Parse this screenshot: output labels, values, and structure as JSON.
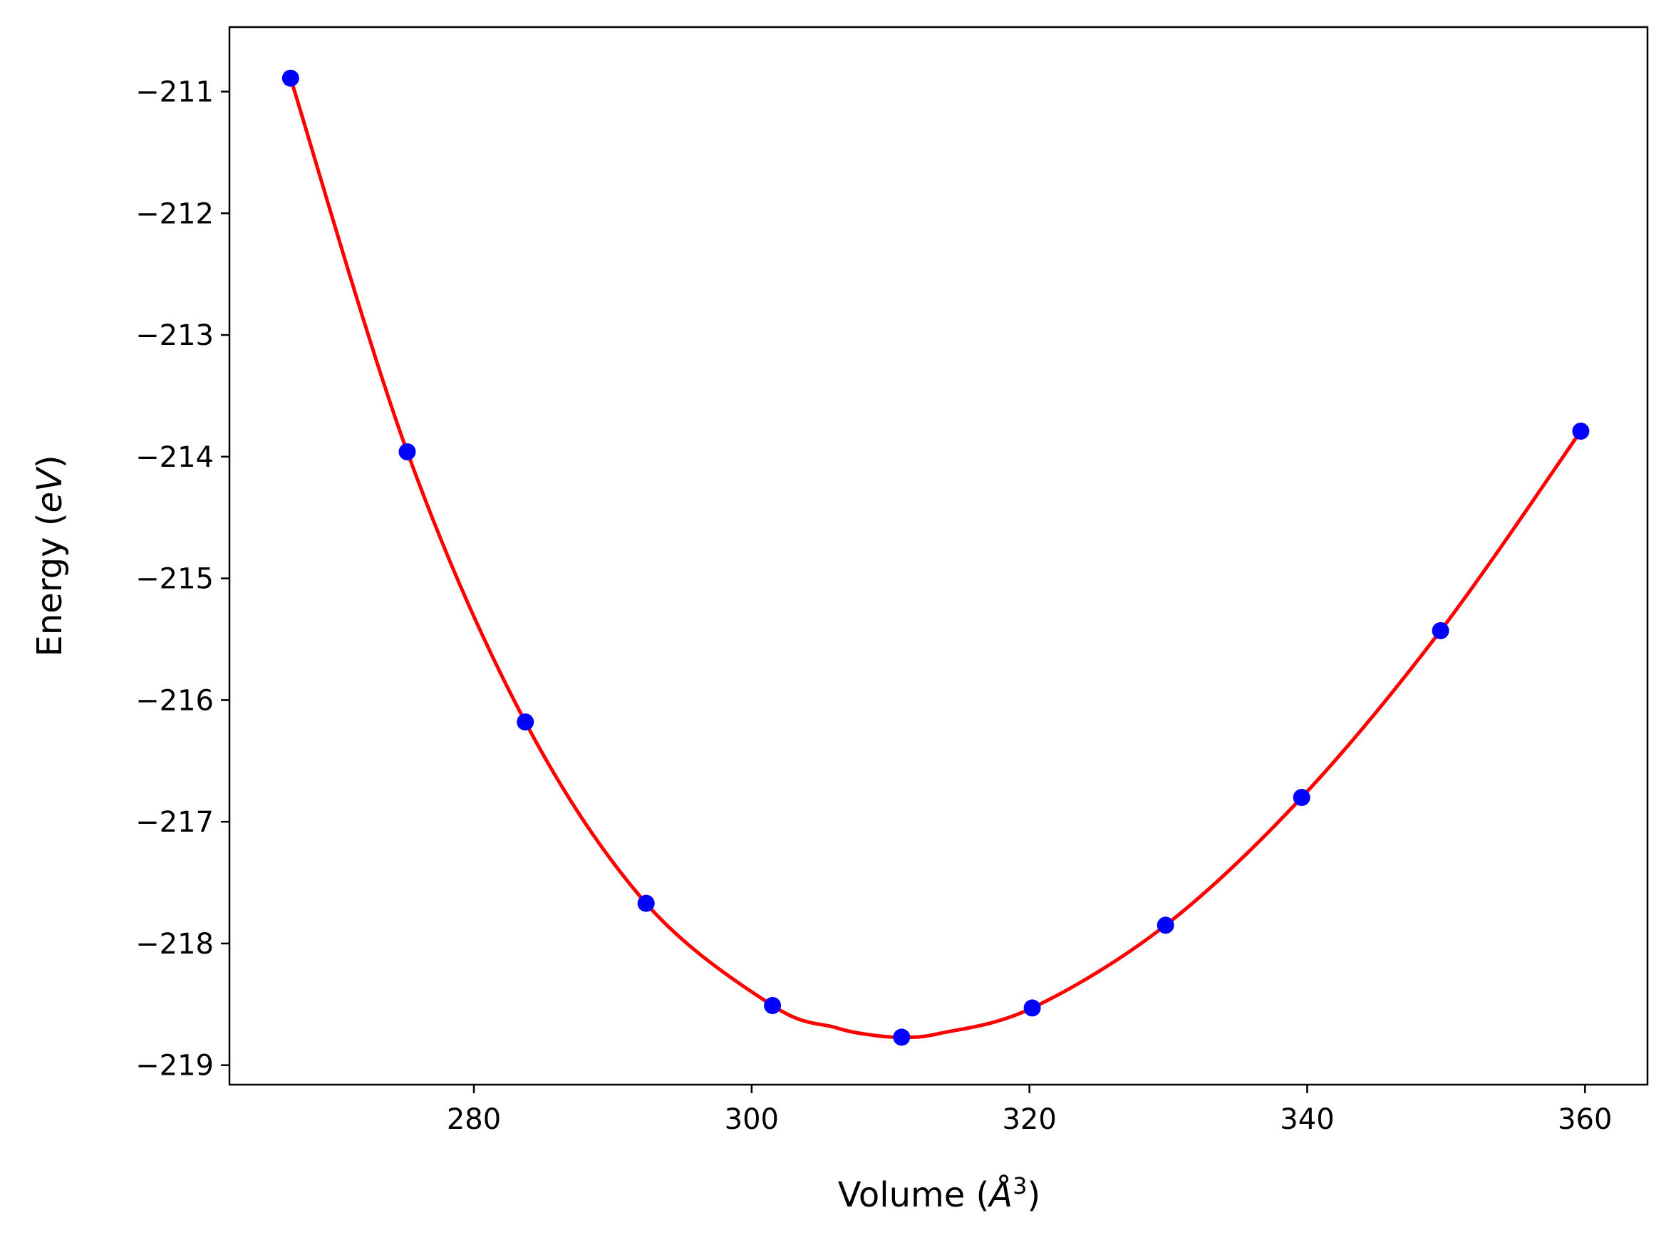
{
  "chart_data": {
    "type": "line",
    "title": "",
    "xlabel": {
      "prefix": "Volume (",
      "symbol": "Å",
      "superscript": "3",
      "suffix": ")"
    },
    "ylabel": {
      "prefix": "Energy (",
      "symbol": "eV",
      "suffix": ")"
    },
    "xlim": [
      262.4,
      364.5
    ],
    "ylim": [
      -219.16,
      -210.47
    ],
    "xticks": [
      280,
      300,
      320,
      340,
      360
    ],
    "xtick_labels": [
      "280",
      "300",
      "320",
      "340",
      "360"
    ],
    "yticks": [
      -211,
      -212,
      -213,
      -214,
      -215,
      -216,
      -217,
      -218,
      -219
    ],
    "ytick_labels": [
      "−211",
      "−212",
      "−213",
      "−214",
      "−215",
      "−216",
      "−217",
      "−218",
      "−219"
    ],
    "grid": false,
    "series": [
      {
        "kind": "markers",
        "color": "#0000ff",
        "x": [
          266.8,
          275.2,
          283.7,
          292.4,
          301.5,
          310.8,
          320.2,
          329.8,
          339.6,
          349.6,
          359.7
        ],
        "y": [
          -210.89,
          -213.96,
          -216.18,
          -217.67,
          -218.51,
          -218.77,
          -218.53,
          -217.85,
          -216.8,
          -215.43,
          -213.79
        ]
      },
      {
        "kind": "fit-line",
        "color": "#ff0000",
        "x": [
          266.8,
          275.2,
          283.7,
          292.4,
          301.5,
          306.0,
          308.5,
          310.8,
          313.5,
          320.2,
          329.8,
          339.6,
          349.6,
          359.7
        ],
        "y": [
          -210.89,
          -213.96,
          -216.18,
          -217.67,
          -218.51,
          -218.69,
          -218.75,
          -218.77,
          -218.74,
          -218.53,
          -217.85,
          -216.8,
          -215.43,
          -213.79
        ]
      }
    ]
  }
}
